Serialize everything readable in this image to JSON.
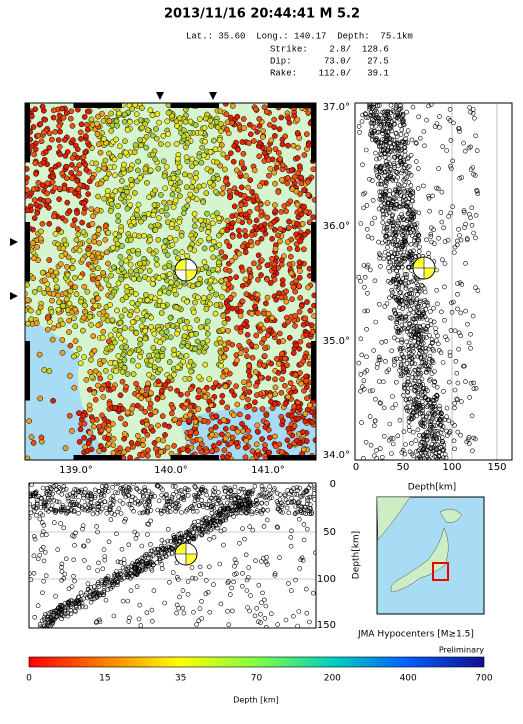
{
  "header": {
    "title": "2013/11/16 20:44:41  M 5.2",
    "lines": [
      "Lat.: 35.60  Long.: 140.17  Depth:  75.1km",
      "Strike:    2.8/  128.6",
      "Dip:      73.0/   27.5",
      "Rake:    112.0/   39.1"
    ]
  },
  "map": {
    "xticks": [
      "139.0°",
      "140.0°",
      "141.0°"
    ],
    "yticks": [
      "37.0°",
      "36.0°",
      "35.0°",
      "34.0°"
    ]
  },
  "right_section": {
    "xticks": [
      "0",
      "50",
      "100",
      "150"
    ],
    "xlabel": "Depth[km]"
  },
  "bottom_section": {
    "yticks": [
      "0",
      "50",
      "100",
      "150"
    ],
    "ylabel": "Depth[km]"
  },
  "inset": {
    "caption": "JMA Hypocenters [M≥1.5]"
  },
  "colorbar": {
    "note": "Preliminary",
    "ticks": [
      "0",
      "15",
      "35",
      "70",
      "200",
      "400",
      "700"
    ],
    "label": "Depth [km]"
  }
}
